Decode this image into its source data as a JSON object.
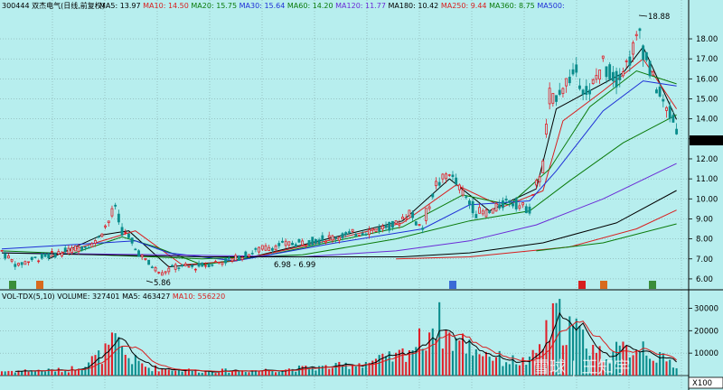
{
  "header": {
    "stock": "300444 双杰电气(日线,前复权)",
    "ma_items": [
      {
        "label": "MA5: 13.97",
        "color": "#000000"
      },
      {
        "label": "MA10: 14.50",
        "color": "#d81e1e"
      },
      {
        "label": "MA20: 15.75",
        "color": "#0a7a0a"
      },
      {
        "label": "MA30: 15.64",
        "color": "#1e2fd6"
      },
      {
        "label": "MA60: 14.20",
        "color": "#0a7a0a"
      },
      {
        "label": "MA120: 11.77",
        "color": "#6a2ad6"
      },
      {
        "label": "MA180: 10.42",
        "color": "#000000"
      },
      {
        "label": "MA250: 9.44",
        "color": "#d81e1e"
      },
      {
        "label": "MA360: 8.75",
        "color": "#0a7a0a"
      },
      {
        "label": "MA500:",
        "color": "#1e2fd6"
      }
    ]
  },
  "volume_header": {
    "items": [
      {
        "label": "VOL-TDX(5,10)",
        "color": "#000000"
      },
      {
        "label": "VOLUME: 327401",
        "color": "#000000"
      },
      {
        "label": "MA5: 463427",
        "color": "#000000"
      },
      {
        "label": "MA10: 556220",
        "color": "#d81e1e"
      }
    ]
  },
  "annotations": {
    "high": "18.88",
    "low": "5.86",
    "range": "6.98 - 6.99",
    "last": "12.51",
    "vol_unit": "X100",
    "watermark": "雪球 | 王知宇"
  },
  "chart_data": [
    {
      "type": "candlestick",
      "title": "300444 双杰电气(日线,前复权)",
      "y_ticks": [
        6.0,
        7.0,
        8.0,
        9.0,
        10.0,
        11.0,
        12.0,
        13.0,
        14.0,
        15.0,
        16.0,
        17.0,
        18.0
      ],
      "ylim": [
        5.5,
        19.4
      ],
      "price_anchors": [
        [
          0,
          7.4
        ],
        [
          5,
          6.7
        ],
        [
          10,
          7.0
        ],
        [
          20,
          7.4
        ],
        [
          28,
          7.8
        ],
        [
          32,
          8.8
        ],
        [
          34,
          9.5
        ],
        [
          36,
          8.6
        ],
        [
          40,
          7.6
        ],
        [
          44,
          6.8
        ],
        [
          48,
          6.3
        ],
        [
          52,
          6.6
        ],
        [
          58,
          6.6
        ],
        [
          64,
          6.8
        ],
        [
          70,
          7.0
        ],
        [
          78,
          7.5
        ],
        [
          84,
          7.7
        ],
        [
          90,
          7.8
        ],
        [
          100,
          8.1
        ],
        [
          110,
          8.4
        ],
        [
          118,
          8.7
        ],
        [
          122,
          9.3
        ],
        [
          126,
          8.6
        ],
        [
          130,
          10.5
        ],
        [
          134,
          11.3
        ],
        [
          138,
          10.4
        ],
        [
          142,
          9.4
        ],
        [
          146,
          9.3
        ],
        [
          152,
          9.9
        ],
        [
          158,
          9.5
        ],
        [
          162,
          11.5
        ],
        [
          164,
          14.5
        ],
        [
          168,
          15.6
        ],
        [
          172,
          16.3
        ],
        [
          176,
          15.2
        ],
        [
          180,
          16.7
        ],
        [
          184,
          16.0
        ],
        [
          188,
          16.9
        ],
        [
          191,
          18.2
        ],
        [
          194,
          16.6
        ],
        [
          198,
          14.9
        ],
        [
          202,
          13.7
        ]
      ],
      "moving_averages": [
        {
          "name": "MA5",
          "color": "#000000",
          "points": [
            [
              14,
              7.0
            ],
            [
              30,
              8.2
            ],
            [
              38,
              8.4
            ],
            [
              50,
              6.6
            ],
            [
              70,
              6.9
            ],
            [
              100,
              8.1
            ],
            [
              120,
              8.9
            ],
            [
              134,
              11.0
            ],
            [
              146,
              9.4
            ],
            [
              160,
              10.5
            ],
            [
              166,
              14.5
            ],
            [
              176,
              15.4
            ],
            [
              186,
              16.3
            ],
            [
              192,
              17.6
            ],
            [
              202,
              13.97
            ]
          ]
        },
        {
          "name": "MA10",
          "color": "#d81e1e",
          "points": [
            [
              14,
              7.1
            ],
            [
              32,
              8.0
            ],
            [
              40,
              8.4
            ],
            [
              54,
              6.7
            ],
            [
              70,
              6.9
            ],
            [
              100,
              8.0
            ],
            [
              120,
              8.8
            ],
            [
              136,
              10.7
            ],
            [
              150,
              9.6
            ],
            [
              162,
              10.4
            ],
            [
              168,
              13.9
            ],
            [
              180,
              15.4
            ],
            [
              192,
              17.0
            ],
            [
              202,
              14.5
            ]
          ]
        },
        {
          "name": "MA20",
          "color": "#0a7a0a",
          "points": [
            [
              20,
              7.2
            ],
            [
              36,
              8.1
            ],
            [
              46,
              7.6
            ],
            [
              60,
              6.7
            ],
            [
              80,
              7.2
            ],
            [
              100,
              7.9
            ],
            [
              120,
              8.6
            ],
            [
              138,
              10.2
            ],
            [
              152,
              9.7
            ],
            [
              164,
              11.5
            ],
            [
              176,
              14.6
            ],
            [
              190,
              16.4
            ],
            [
              202,
              15.75
            ]
          ]
        },
        {
          "name": "MA30",
          "color": "#1e2fd6",
          "points": [
            [
              0,
              7.5
            ],
            [
              40,
              7.9
            ],
            [
              50,
              7.3
            ],
            [
              70,
              6.9
            ],
            [
              100,
              7.8
            ],
            [
              126,
              8.5
            ],
            [
              140,
              9.7
            ],
            [
              158,
              9.9
            ],
            [
              166,
              11.4
            ],
            [
              180,
              14.4
            ],
            [
              192,
              15.9
            ],
            [
              202,
              15.64
            ]
          ]
        },
        {
          "name": "MA60",
          "color": "#0a7a0a",
          "points": [
            [
              0,
              7.4
            ],
            [
              60,
              7.0
            ],
            [
              90,
              7.2
            ],
            [
              118,
              8.0
            ],
            [
              140,
              8.9
            ],
            [
              158,
              9.4
            ],
            [
              170,
              10.9
            ],
            [
              186,
              12.8
            ],
            [
              202,
              14.2
            ]
          ]
        },
        {
          "name": "MA120",
          "color": "#6a2ad6",
          "points": [
            [
              0,
              7.3
            ],
            [
              50,
              7.2
            ],
            [
              90,
              7.1
            ],
            [
              118,
              7.4
            ],
            [
              140,
              7.9
            ],
            [
              160,
              8.7
            ],
            [
              180,
              10.0
            ],
            [
              202,
              11.77
            ]
          ]
        },
        {
          "name": "MA180",
          "color": "#000000",
          "points": [
            [
              0,
              7.3
            ],
            [
              60,
              7.1
            ],
            [
              120,
              7.1
            ],
            [
              140,
              7.3
            ],
            [
              162,
              7.8
            ],
            [
              184,
              8.8
            ],
            [
              202,
              10.42
            ]
          ]
        },
        {
          "name": "MA250",
          "color": "#d81e1e",
          "points": [
            [
              118,
              7.0
            ],
            [
              140,
              7.1
            ],
            [
              170,
              7.6
            ],
            [
              190,
              8.5
            ],
            [
              202,
              9.44
            ]
          ]
        },
        {
          "name": "MA360",
          "color": "#0a7a0a",
          "points": [
            [
              160,
              7.4
            ],
            [
              180,
              7.8
            ],
            [
              202,
              8.75
            ]
          ]
        }
      ]
    },
    {
      "type": "bar",
      "title": "VOL-TDX(5,10)",
      "unit": "X100",
      "y_ticks": [
        10000,
        20000,
        30000
      ],
      "ylim": [
        0,
        33000
      ],
      "volume_anchors": [
        [
          0,
          2000
        ],
        [
          20,
          2500
        ],
        [
          30,
          9000
        ],
        [
          34,
          15000
        ],
        [
          38,
          8000
        ],
        [
          44,
          3500
        ],
        [
          60,
          2000
        ],
        [
          80,
          2500
        ],
        [
          100,
          4000
        ],
        [
          118,
          8000
        ],
        [
          126,
          16000
        ],
        [
          130,
          25000
        ],
        [
          134,
          17000
        ],
        [
          142,
          12000
        ],
        [
          150,
          7000
        ],
        [
          158,
          6000
        ],
        [
          162,
          15000
        ],
        [
          166,
          26000
        ],
        [
          170,
          22000
        ],
        [
          176,
          14000
        ],
        [
          180,
          9000
        ],
        [
          188,
          12000
        ],
        [
          192,
          14000
        ],
        [
          196,
          8000
        ],
        [
          202,
          5000
        ]
      ]
    }
  ]
}
